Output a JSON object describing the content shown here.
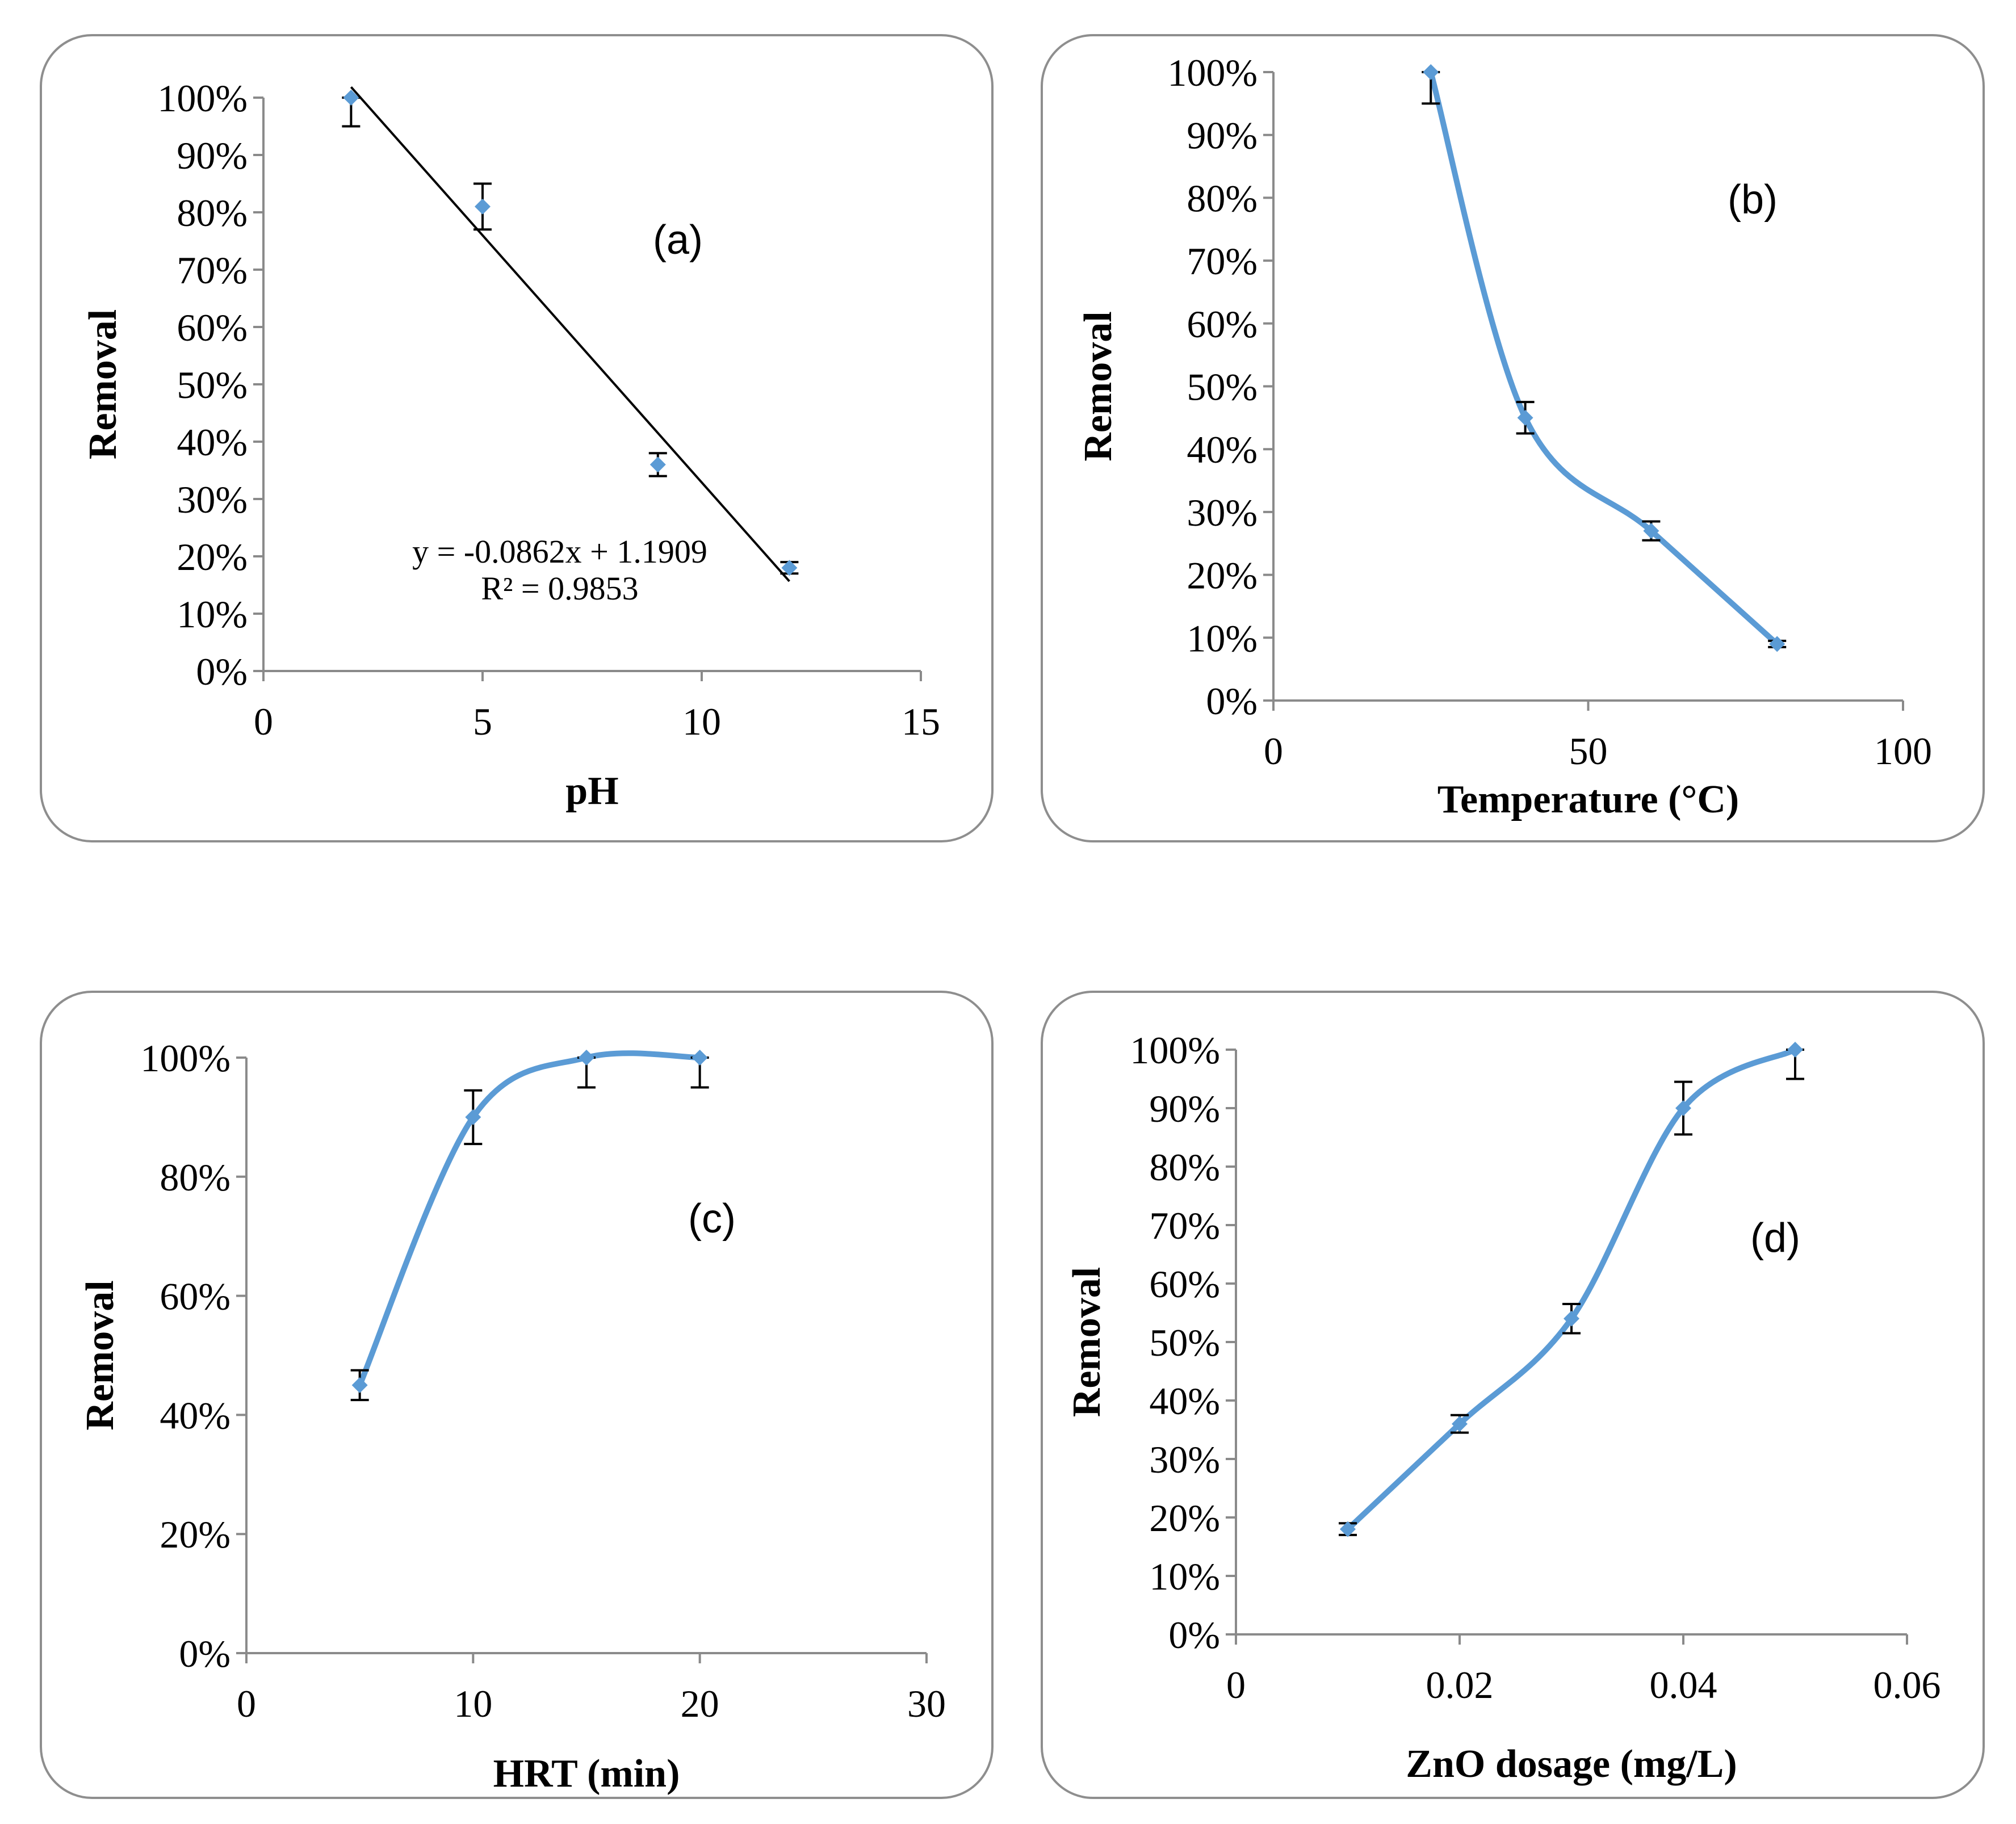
{
  "colors": {
    "series": "#5b9bd5",
    "trendline": "#000000",
    "error_bar": "#000000",
    "axis": "#8a8a8a",
    "panel_border": "#8e8e8e"
  },
  "chart_data": [
    {
      "id": "a",
      "type": "scatter",
      "tag": "(a)",
      "xlabel": "pH",
      "ylabel": "Removal",
      "xlim": [
        0,
        15
      ],
      "ylim": [
        0,
        1
      ],
      "x_ticks": [
        0,
        5,
        10,
        15
      ],
      "x_tick_labels": [
        "0",
        "5",
        "10",
        "15"
      ],
      "y_ticks": [
        0,
        0.1,
        0.2,
        0.3,
        0.4,
        0.5,
        0.6,
        0.7,
        0.8,
        0.9,
        1.0
      ],
      "y_tick_labels": [
        "0%",
        "10%",
        "20%",
        "30%",
        "40%",
        "50%",
        "60%",
        "70%",
        "80%",
        "90%",
        "100%"
      ],
      "series": [
        {
          "name": "Removal",
          "x": [
            2,
            5,
            9,
            12
          ],
          "y": [
            1.0,
            0.81,
            0.36,
            0.18
          ],
          "error": [
            0.05,
            0.04,
            0.02,
            0.01
          ],
          "line": "none"
        }
      ],
      "trendline": {
        "type": "linear",
        "slope": -0.0862,
        "intercept": 1.1909,
        "x_range": [
          2,
          12
        ],
        "equation": "y = -0.0862x + 1.1909",
        "r_squared": "R² = 0.9853"
      }
    },
    {
      "id": "b",
      "type": "line",
      "tag": "(b)",
      "xlabel": "Temperature (°C)",
      "ylabel": "Removal",
      "xlim": [
        0,
        100
      ],
      "ylim": [
        0,
        1
      ],
      "x_ticks": [
        0,
        50,
        100
      ],
      "x_tick_labels": [
        "0",
        "50",
        "100"
      ],
      "y_ticks": [
        0,
        0.1,
        0.2,
        0.3,
        0.4,
        0.5,
        0.6,
        0.7,
        0.8,
        0.9,
        1.0
      ],
      "y_tick_labels": [
        "0%",
        "10%",
        "20%",
        "30%",
        "40%",
        "50%",
        "60%",
        "70%",
        "80%",
        "90%",
        "100%"
      ],
      "series": [
        {
          "name": "Removal",
          "x": [
            25,
            40,
            60,
            80
          ],
          "y": [
            1.0,
            0.45,
            0.27,
            0.09
          ],
          "error": [
            0.05,
            0.025,
            0.015,
            0.005
          ],
          "line": "smooth"
        }
      ]
    },
    {
      "id": "c",
      "type": "line",
      "tag": "(c)",
      "xlabel": "HRT (min)",
      "ylabel": "Removal",
      "xlim": [
        0,
        30
      ],
      "ylim": [
        0,
        1
      ],
      "x_ticks": [
        0,
        10,
        20,
        30
      ],
      "x_tick_labels": [
        "0",
        "10",
        "20",
        "30"
      ],
      "y_ticks": [
        0,
        0.2,
        0.4,
        0.6,
        0.8,
        1.0
      ],
      "y_tick_labels": [
        "0%",
        "20%",
        "40%",
        "60%",
        "80%",
        "100%"
      ],
      "series": [
        {
          "name": "Removal",
          "x": [
            5,
            10,
            15,
            20
          ],
          "y": [
            0.45,
            0.9,
            1.0,
            1.0
          ],
          "error": [
            0.025,
            0.045,
            0.05,
            0.05
          ],
          "line": "smooth"
        }
      ]
    },
    {
      "id": "d",
      "type": "line",
      "tag": "(d)",
      "xlabel": "ZnO dosage (mg/L)",
      "ylabel": "Removal",
      "xlim": [
        0,
        0.06
      ],
      "ylim": [
        0,
        1
      ],
      "x_ticks": [
        0,
        0.02,
        0.04,
        0.06
      ],
      "x_tick_labels": [
        "0",
        "0.02",
        "0.04",
        "0.06"
      ],
      "y_ticks": [
        0,
        0.1,
        0.2,
        0.3,
        0.4,
        0.5,
        0.6,
        0.7,
        0.8,
        0.9,
        1.0
      ],
      "y_tick_labels": [
        "0%",
        "10%",
        "20%",
        "30%",
        "40%",
        "50%",
        "60%",
        "70%",
        "80%",
        "90%",
        "100%"
      ],
      "series": [
        {
          "name": "Removal",
          "x": [
            0.01,
            0.02,
            0.03,
            0.04,
            0.05
          ],
          "y": [
            0.18,
            0.36,
            0.54,
            0.9,
            1.0
          ],
          "error": [
            0.01,
            0.015,
            0.025,
            0.045,
            0.05
          ],
          "line": "smooth"
        }
      ]
    }
  ]
}
